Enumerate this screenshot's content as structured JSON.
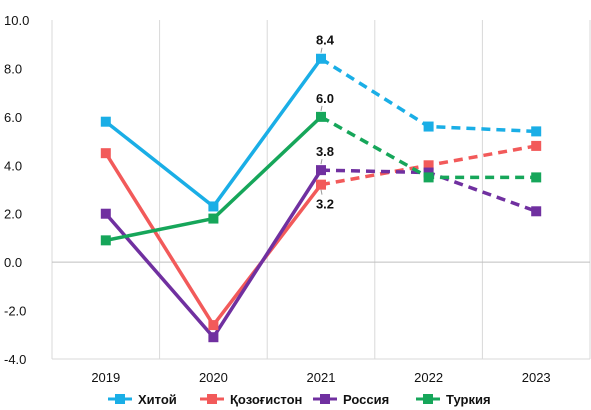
{
  "chart_data": {
    "type": "line",
    "categories": [
      "2019",
      "2020",
      "2021",
      "2022",
      "2023"
    ],
    "ylim": [
      -4.0,
      10.0
    ],
    "y_ticks": [
      "10.0",
      "8.0",
      "6.0",
      "4.0",
      "2.0",
      "0.0",
      "-2.0",
      "-4.0"
    ],
    "y_tick_values": [
      10,
      8,
      6,
      4,
      2,
      0,
      -2,
      -4
    ],
    "solid_through_category": "2021",
    "dashed_after_category": "2021",
    "grid": {
      "horizontal": false,
      "vertical": true,
      "zero_line": true
    },
    "legend_position": "bottom",
    "series": [
      {
        "name": "Хитой",
        "color": "#1AAEE6",
        "values": [
          5.8,
          2.3,
          8.4,
          5.6,
          5.4
        ]
      },
      {
        "name": "Қозоғистон",
        "color": "#F25A5A",
        "values": [
          4.5,
          -2.6,
          3.2,
          4.0,
          4.8
        ]
      },
      {
        "name": "Россия",
        "color": "#7030A0",
        "values": [
          2.0,
          -3.1,
          3.8,
          3.7,
          2.1
        ]
      },
      {
        "name": "Туркия",
        "color": "#16A65A",
        "values": [
          0.9,
          1.8,
          6.0,
          3.5,
          3.5
        ]
      }
    ],
    "data_labels": [
      {
        "text": "8.4",
        "series": "Хитой",
        "category": "2021",
        "position": "above"
      },
      {
        "text": "6.0",
        "series": "Туркия",
        "category": "2021",
        "position": "above"
      },
      {
        "text": "3.8",
        "series": "Россия",
        "category": "2021",
        "position": "above"
      },
      {
        "text": "3.2",
        "series": "Қозоғистон",
        "category": "2021",
        "position": "below"
      }
    ]
  }
}
